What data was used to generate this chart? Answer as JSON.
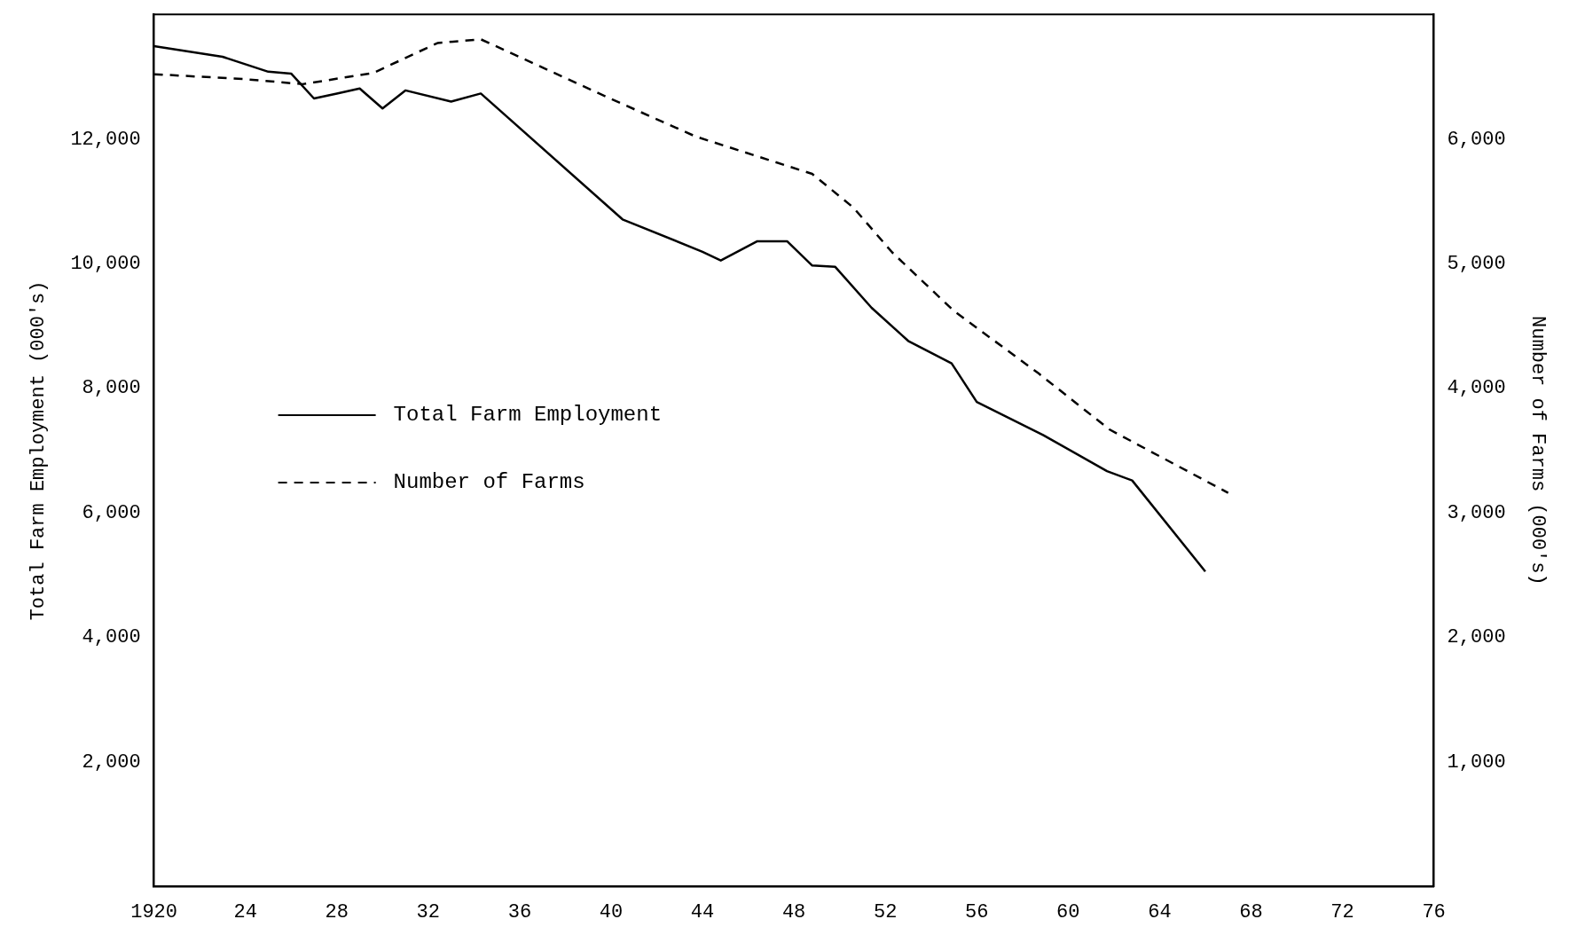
{
  "chart_data": {
    "type": "line",
    "xlabel": null,
    "ylabel": "Total Farm Employment (000's)",
    "y2label": "Number of Farms (000's)",
    "xlim": [
      1920,
      1976
    ],
    "xticks": [
      {
        "value": 1920,
        "label": "1920"
      },
      {
        "value": 1924,
        "label": "24"
      },
      {
        "value": 1928,
        "label": "28"
      },
      {
        "value": 1932,
        "label": "32"
      },
      {
        "value": 1936,
        "label": "36"
      },
      {
        "value": 1940,
        "label": "40"
      },
      {
        "value": 1944,
        "label": "44"
      },
      {
        "value": 1948,
        "label": "48"
      },
      {
        "value": 1952,
        "label": "52"
      },
      {
        "value": 1956,
        "label": "56"
      },
      {
        "value": 1960,
        "label": "60"
      },
      {
        "value": 1964,
        "label": "64"
      },
      {
        "value": 1968,
        "label": "68"
      },
      {
        "value": 1972,
        "label": "72"
      },
      {
        "value": 1976,
        "label": "76"
      }
    ],
    "ylim": [
      0,
      14000
    ],
    "yticks": [
      {
        "value": 2000,
        "label": "2,000"
      },
      {
        "value": 4000,
        "label": "4,000"
      },
      {
        "value": 6000,
        "label": "6,000"
      },
      {
        "value": 8000,
        "label": "8,000"
      },
      {
        "value": 10000,
        "label": "10,000"
      },
      {
        "value": 12000,
        "label": "12,000"
      }
    ],
    "y2lim": [
      0,
      7000
    ],
    "y2ticks": [
      {
        "value": 1000,
        "label": "1,000"
      },
      {
        "value": 2000,
        "label": "2,000"
      },
      {
        "value": 3000,
        "label": "3,000"
      },
      {
        "value": 4000,
        "label": "4,000"
      },
      {
        "value": 5000,
        "label": "5,000"
      },
      {
        "value": 6000,
        "label": "6,000"
      }
    ],
    "grid": false,
    "legend": "left",
    "marker": "none",
    "series": [
      {
        "name": "Total Farm Employment",
        "color": "#000000",
        "line_style": "solid",
        "x": [
          1920,
          1923,
          1925,
          1926,
          1927,
          1928,
          1929,
          1930,
          1931,
          1933,
          1934.3,
          1940.5,
          1944,
          1944.8,
          1946.4,
          1947.7,
          1948.8,
          1949.8,
          1951.4,
          1953,
          1954.9,
          1956,
          1958.9,
          1961.7,
          1962.8,
          1966
        ],
        "values": [
          13490,
          13320,
          13080,
          13050,
          12650,
          12730,
          12810,
          12490,
          12780,
          12600,
          12730,
          10710,
          10190,
          10050,
          10360,
          10360,
          9970,
          9950,
          9290,
          8760,
          8400,
          7780,
          7250,
          6670,
          6520,
          5060
        ]
      },
      {
        "name": "Number of Farms",
        "color": "#000000",
        "line_style": "dashed",
        "axis": "y2",
        "x": [
          1920,
          1924,
          1926.5,
          1929.6,
          1932.4,
          1934.3,
          1939.9,
          1943.7,
          1948.8,
          1950.6,
          1952.3,
          1955,
          1958.7,
          1961.8,
          1967
        ],
        "values": [
          6520,
          6480,
          6440,
          6530,
          6770,
          6800,
          6330,
          6020,
          5720,
          5450,
          5090,
          4620,
          4120,
          3670,
          3160
        ]
      }
    ]
  }
}
